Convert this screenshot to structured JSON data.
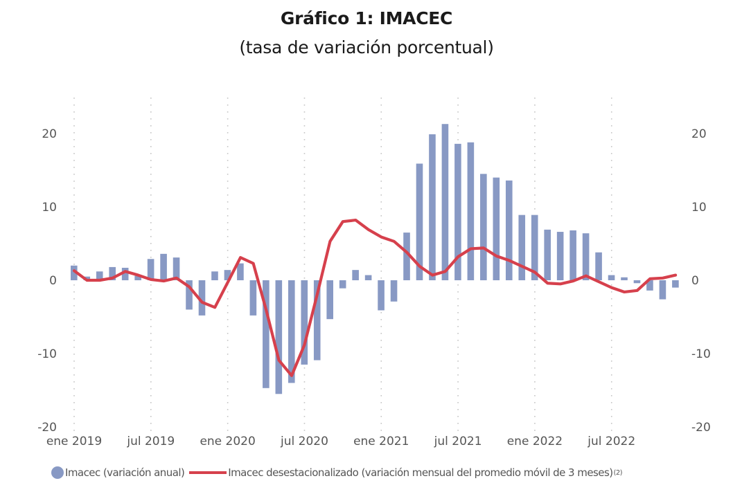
{
  "chart_data": {
    "type": "bar+line",
    "title": "Gráfico 1:  IMACEC",
    "subtitle": "(tasa de variación porcentual)",
    "xlabel": "",
    "ylabel": "",
    "ylim": [
      -20,
      20
    ],
    "y_ticks_left": [
      "20",
      "10",
      "0",
      "-10",
      "-20"
    ],
    "y_ticks_right": [
      "20",
      "10",
      "0",
      "-10",
      "-20"
    ],
    "y_tick_values": [
      20,
      10,
      0,
      -10,
      -20
    ],
    "x_tick_labels": [
      "ene 2019",
      "jul 2019",
      "ene 2020",
      "jul 2020",
      "ene 2021",
      "jul 2021",
      "ene 2022",
      "jul 2022"
    ],
    "x_tick_month_index": [
      0,
      6,
      12,
      18,
      24,
      30,
      36,
      42
    ],
    "grid": "vertical dotted at x ticks",
    "legend_position": "bottom",
    "x": [
      "2019-01",
      "2019-02",
      "2019-03",
      "2019-04",
      "2019-05",
      "2019-06",
      "2019-07",
      "2019-08",
      "2019-09",
      "2019-10",
      "2019-11",
      "2019-12",
      "2020-01",
      "2020-02",
      "2020-03",
      "2020-04",
      "2020-05",
      "2020-06",
      "2020-07",
      "2020-08",
      "2020-09",
      "2020-10",
      "2020-11",
      "2020-12",
      "2021-01",
      "2021-02",
      "2021-03",
      "2021-04",
      "2021-05",
      "2021-06",
      "2021-07",
      "2021-08",
      "2021-09",
      "2021-10",
      "2021-11",
      "2021-12",
      "2022-01",
      "2022-02",
      "2022-03",
      "2022-04",
      "2022-05",
      "2022-06",
      "2022-07",
      "2022-08",
      "2022-09",
      "2022-10",
      "2022-11",
      "2022-12"
    ],
    "series": [
      {
        "name": "Imacec (variación anual)",
        "type": "bar",
        "color": "#8899c4",
        "values": [
          2.0,
          0.5,
          1.2,
          1.8,
          1.7,
          0.6,
          2.9,
          3.6,
          3.1,
          -4.0,
          -4.8,
          1.2,
          1.4,
          2.3,
          -4.8,
          -14.7,
          -15.5,
          -14.0,
          -11.5,
          -10.9,
          -5.3,
          -1.1,
          1.4,
          0.7,
          -4.1,
          -2.9,
          6.5,
          15.9,
          19.9,
          21.3,
          18.6,
          18.8,
          14.5,
          14.0,
          13.6,
          8.9,
          8.9,
          6.9,
          6.6,
          6.8,
          6.4,
          3.8,
          0.7,
          0.4,
          -0.4,
          -1.4,
          -2.6,
          -1.0
        ]
      },
      {
        "name": "Imacec desestacionalizado (variación mensual del promedio móvil de 3 meses)",
        "name_superscript": "(2)",
        "type": "line",
        "color": "#d6404c",
        "values": [
          1.3,
          0.0,
          0.0,
          0.3,
          1.2,
          0.7,
          0.1,
          -0.1,
          0.3,
          -0.9,
          -3.0,
          -3.7,
          -0.3,
          3.1,
          2.3,
          -4.0,
          -10.9,
          -13.0,
          -8.8,
          -1.9,
          5.3,
          8.0,
          8.2,
          6.9,
          5.9,
          5.3,
          3.8,
          1.9,
          0.7,
          1.2,
          3.2,
          4.3,
          4.4,
          3.3,
          2.7,
          1.9,
          1.1,
          -0.4,
          -0.5,
          -0.1,
          0.6,
          -0.2,
          -1.0,
          -1.6,
          -1.4,
          0.2,
          0.3,
          0.7
        ]
      }
    ]
  }
}
